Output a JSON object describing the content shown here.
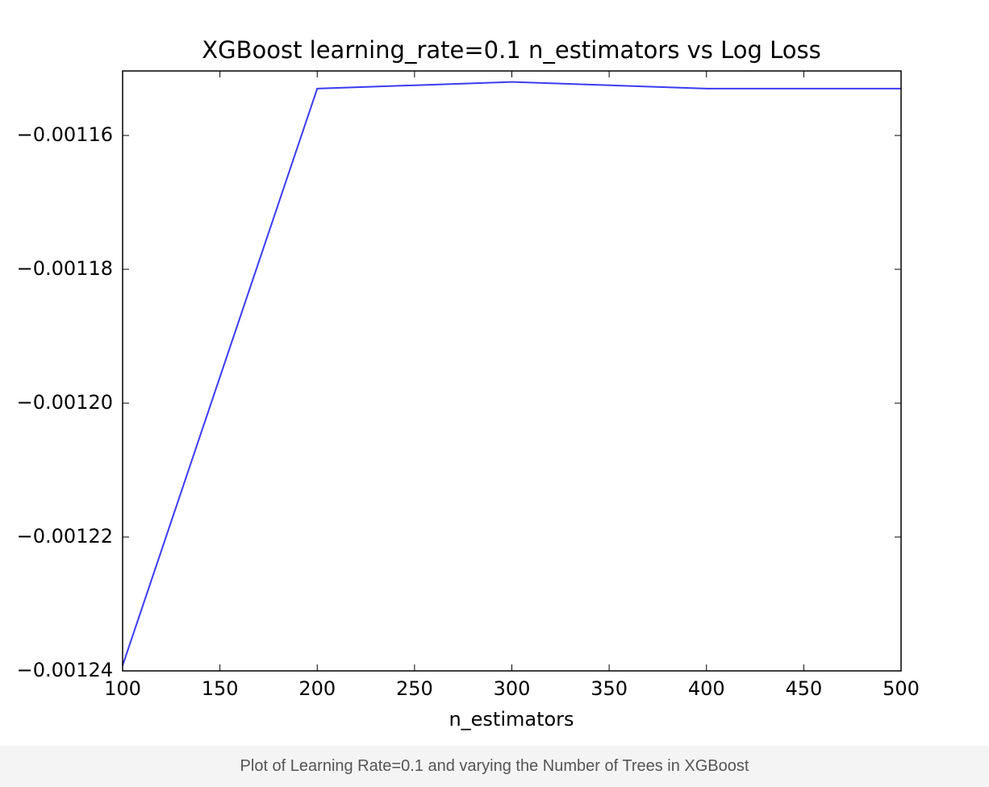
{
  "chart_data": {
    "type": "line",
    "title": "XGBoost learning_rate=0.1 n_estimators vs Log Loss",
    "x_label": "n_estimators",
    "x": [
      100,
      200,
      300,
      400,
      500
    ],
    "series": [
      {
        "name": "log loss",
        "color": "#3b3bf0",
        "values": [
          -0.0012392,
          -0.001153,
          -0.001152,
          -0.001153,
          -0.001153
        ]
      }
    ],
    "xlim": [
      100,
      500
    ],
    "xticks": [
      100,
      150,
      200,
      250,
      300,
      350,
      400,
      450,
      500
    ],
    "ylim": [
      -0.00124,
      -0.00115036
    ],
    "yticks": [
      {
        "value": -0.00124,
        "label": "−0.00124"
      },
      {
        "value": -0.00122,
        "label": "−0.00122"
      },
      {
        "value": -0.0012,
        "label": "−0.00120"
      },
      {
        "value": -0.00118,
        "label": "−0.00118"
      },
      {
        "value": -0.00116,
        "label": "−0.00116"
      }
    ],
    "grid": false
  },
  "caption": "Plot of Learning Rate=0.1 and varying the Number of Trees in XGBoost"
}
